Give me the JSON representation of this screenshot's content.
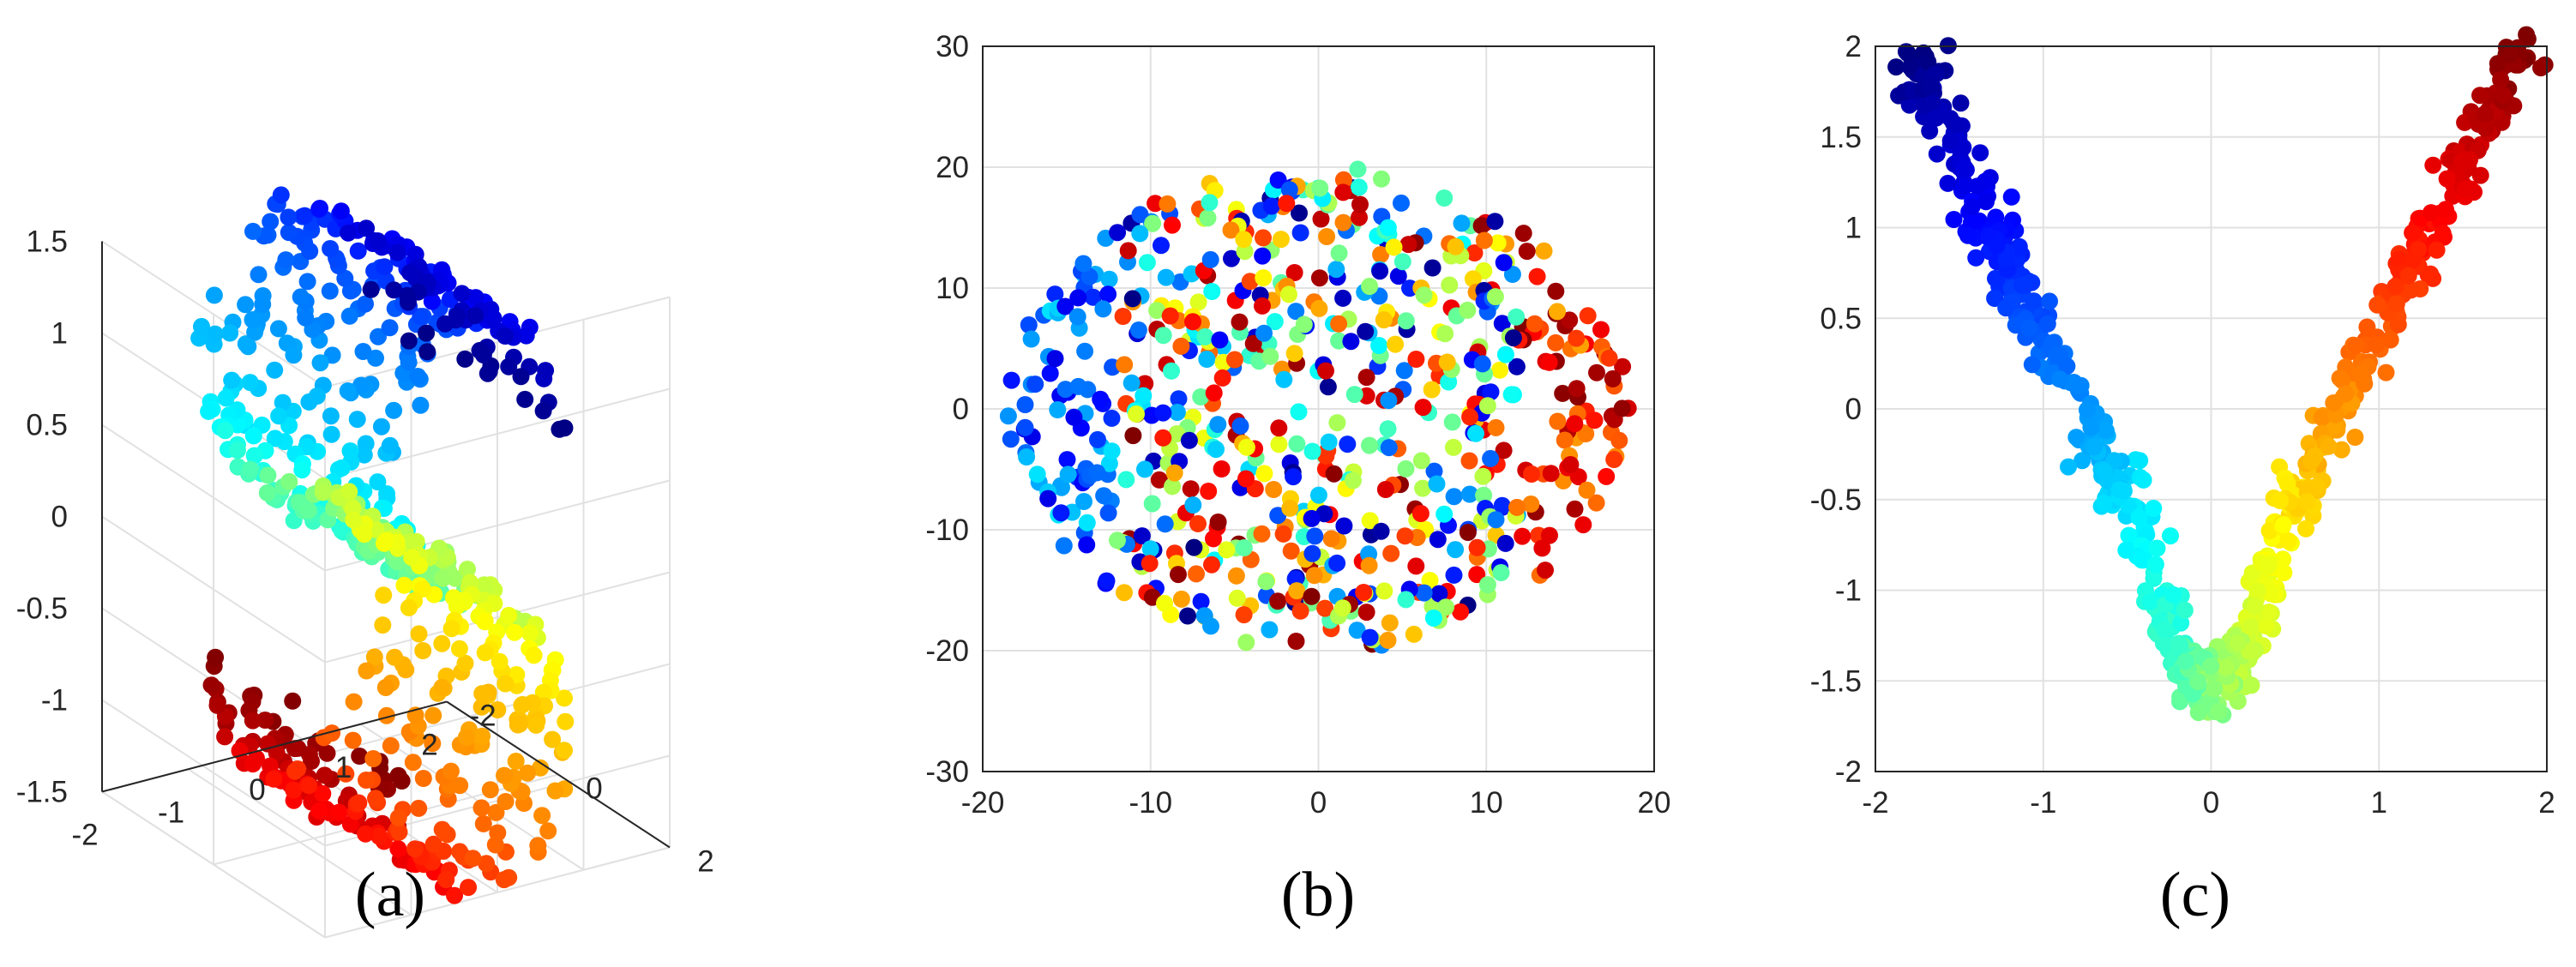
{
  "colormap": "jet",
  "colors": {
    "jet_stops": [
      "#00008f",
      "#0000ff",
      "#00ffff",
      "#80ff80",
      "#ffff00",
      "#ff0000",
      "#800000"
    ],
    "axis": "#262626",
    "grid": "#e1e1e1"
  },
  "chart_data": [
    {
      "panel": "a",
      "caption": "(a)",
      "type": "scatter",
      "projection": "3d",
      "description_of_data": "S-curve manifold sampled in 3D, points colored by position along the curve (jet colormap)",
      "x_ticks": [
        "-2",
        "-1",
        "0",
        "1",
        "2"
      ],
      "y_ticks": [
        "-2",
        "0",
        "2"
      ],
      "z_ticks": [
        "-1.5",
        "-1",
        "-0.5",
        "0",
        "0.5",
        "1",
        "1.5"
      ],
      "xlim": [
        -2,
        2
      ],
      "ylim": [
        -2,
        2
      ],
      "zlim": [
        -1.5,
        1.5
      ],
      "grid": true,
      "n_points": 700
    },
    {
      "panel": "b",
      "caption": "(b)",
      "type": "scatter",
      "description_of_data": "2D embedding forming a roughly elliptical disc; colors mixed across the disc with red/orange on the right edge and blue on the left edge",
      "x_ticks": [
        "-20",
        "-10",
        "0",
        "10",
        "20"
      ],
      "y_ticks": [
        "-30",
        "-20",
        "-10",
        "0",
        "10",
        "20",
        "30"
      ],
      "xlim": [
        -20,
        20
      ],
      "ylim": [
        -30,
        30
      ],
      "grid": true,
      "n_points": 700
    },
    {
      "panel": "c",
      "caption": "(c)",
      "type": "scatter",
      "description_of_data": "2D embedding forming a V shape from (-1.8, 2) down to about (0, -1.7) and up to (1.85, 2); colored blue on the left arm through cyan/green/yellow at the vertex to dark red on the right arm",
      "x_ticks": [
        "-2",
        "-1",
        "0",
        "1",
        "2"
      ],
      "y_ticks": [
        "-2",
        "-1.5",
        "-1",
        "-0.5",
        "0",
        "0.5",
        "1",
        "1.5",
        "2"
      ],
      "xlim": [
        -2,
        2
      ],
      "ylim": [
        -2,
        2
      ],
      "grid": true,
      "n_points": 700
    }
  ]
}
